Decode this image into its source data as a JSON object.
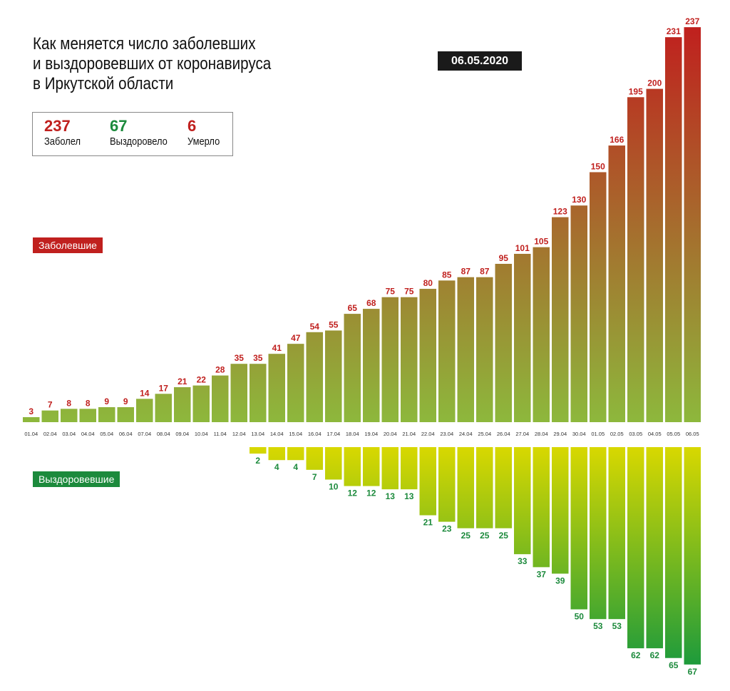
{
  "header": {
    "title_lines": [
      "Как меняется число заболевших",
      "и выздоровевших от коронавируса",
      "в Иркутской области"
    ],
    "date": "06.05.2020"
  },
  "summary": {
    "sick": {
      "value": "237",
      "label": "Заболел"
    },
    "recovered": {
      "value": "67",
      "label": "Выздоровело"
    },
    "dead": {
      "value": "6",
      "label": "Умерло"
    }
  },
  "labels": {
    "sick": "Заболевшие",
    "recovered": "Выздоровевшие"
  },
  "colors": {
    "sick_top": "#c0201e",
    "sick_bottom": "#8db83c",
    "recovered_top": "#d8d800",
    "recovered_bottom": "#1c9a3c",
    "sick_text": "#c0201e",
    "recovered_text": "#1c8a3c",
    "badge": "#1a1a1a"
  },
  "chart_data": {
    "type": "bar",
    "categories": [
      "01.04",
      "02.04",
      "03.04",
      "04.04",
      "05.04",
      "06.04",
      "07.04",
      "08.04",
      "09.04",
      "10.04",
      "11.04",
      "12.04",
      "13.04",
      "14.04",
      "15.04",
      "16.04",
      "17.04",
      "18.04",
      "19.04",
      "20.04",
      "21.04",
      "22.04",
      "23.04",
      "24.04",
      "25.04",
      "26.04",
      "27.04",
      "28.04",
      "29.04",
      "30.04",
      "01.05",
      "02.05",
      "03.05",
      "04.05",
      "05.05",
      "06.05"
    ],
    "series": [
      {
        "name": "Заболевшие",
        "values": [
          3,
          7,
          8,
          8,
          9,
          9,
          14,
          17,
          21,
          22,
          28,
          35,
          35,
          41,
          47,
          54,
          55,
          65,
          68,
          75,
          75,
          80,
          85,
          87,
          87,
          95,
          101,
          105,
          123,
          130,
          150,
          166,
          195,
          200,
          231,
          237
        ]
      },
      {
        "name": "Выздоровевшие",
        "values": [
          null,
          null,
          null,
          null,
          null,
          null,
          null,
          null,
          null,
          null,
          null,
          null,
          2,
          4,
          4,
          7,
          10,
          12,
          12,
          13,
          13,
          21,
          23,
          25,
          25,
          25,
          33,
          37,
          39,
          50,
          53,
          53,
          62,
          62,
          65,
          67
        ]
      }
    ],
    "title": "Как меняется число заболевших и выздоровевших от коронавируса в Иркутской области",
    "xlabel": "",
    "ylabel": "",
    "grid": false,
    "legend": "inline-left"
  }
}
